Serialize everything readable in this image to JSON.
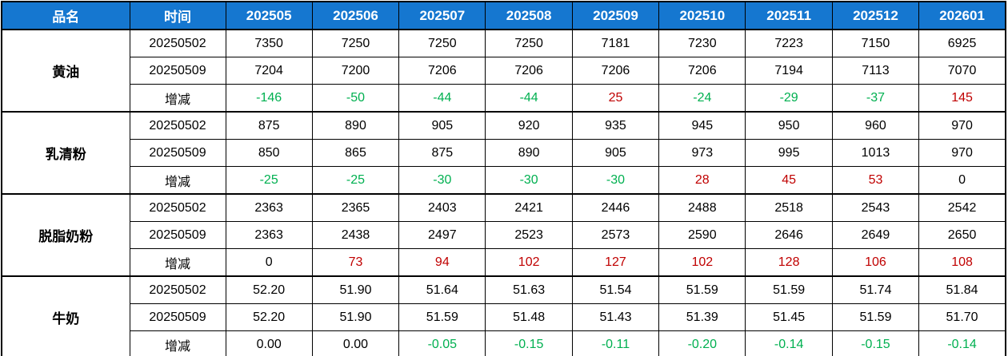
{
  "chart_data": {
    "type": "table",
    "header": {
      "product": "品名",
      "time": "时间",
      "periods": [
        "202505",
        "202506",
        "202507",
        "202508",
        "202509",
        "202510",
        "202511",
        "202512",
        "202601"
      ]
    },
    "colors": {
      "header_bg": "#1577D0",
      "header_text": "#FFFFFF",
      "positive": "#C00000",
      "negative": "#00B050",
      "neutral": "#000000",
      "border": "#000000"
    },
    "groups": [
      {
        "product": "黄油",
        "rows": [
          {
            "label": "20250502",
            "type": "date",
            "values": [
              "7350",
              "7250",
              "7250",
              "7250",
              "7181",
              "7230",
              "7223",
              "7150",
              "6925"
            ]
          },
          {
            "label": "20250509",
            "type": "date",
            "values": [
              "7204",
              "7200",
              "7206",
              "7206",
              "7206",
              "7206",
              "7194",
              "7113",
              "7070"
            ]
          },
          {
            "label": "增减",
            "type": "change",
            "values": [
              "-146",
              "-50",
              "-44",
              "-44",
              "25",
              "-24",
              "-29",
              "-37",
              "145"
            ]
          }
        ]
      },
      {
        "product": "乳清粉",
        "rows": [
          {
            "label": "20250502",
            "type": "date",
            "values": [
              "875",
              "890",
              "905",
              "920",
              "935",
              "945",
              "950",
              "960",
              "970"
            ]
          },
          {
            "label": "20250509",
            "type": "date",
            "values": [
              "850",
              "865",
              "875",
              "890",
              "905",
              "973",
              "995",
              "1013",
              "970"
            ]
          },
          {
            "label": "增减",
            "type": "change",
            "values": [
              "-25",
              "-25",
              "-30",
              "-30",
              "-30",
              "28",
              "45",
              "53",
              "0"
            ]
          }
        ]
      },
      {
        "product": "脱脂奶粉",
        "rows": [
          {
            "label": "20250502",
            "type": "date",
            "values": [
              "2363",
              "2365",
              "2403",
              "2421",
              "2446",
              "2488",
              "2518",
              "2543",
              "2542"
            ]
          },
          {
            "label": "20250509",
            "type": "date",
            "values": [
              "2363",
              "2438",
              "2497",
              "2523",
              "2573",
              "2590",
              "2646",
              "2649",
              "2650"
            ]
          },
          {
            "label": "增减",
            "type": "change",
            "values": [
              "0",
              "73",
              "94",
              "102",
              "127",
              "102",
              "128",
              "106",
              "108"
            ]
          }
        ]
      },
      {
        "product": "牛奶",
        "rows": [
          {
            "label": "20250502",
            "type": "date",
            "values": [
              "52.20",
              "51.90",
              "51.64",
              "51.63",
              "51.54",
              "51.59",
              "51.59",
              "51.74",
              "51.84"
            ]
          },
          {
            "label": "20250509",
            "type": "date",
            "values": [
              "52.20",
              "51.90",
              "51.59",
              "51.48",
              "51.43",
              "51.39",
              "51.45",
              "51.59",
              "51.70"
            ]
          },
          {
            "label": "增减",
            "type": "change",
            "values": [
              "0.00",
              "0.00",
              "-0.05",
              "-0.15",
              "-0.11",
              "-0.20",
              "-0.14",
              "-0.15",
              "-0.14"
            ]
          }
        ]
      }
    ]
  }
}
